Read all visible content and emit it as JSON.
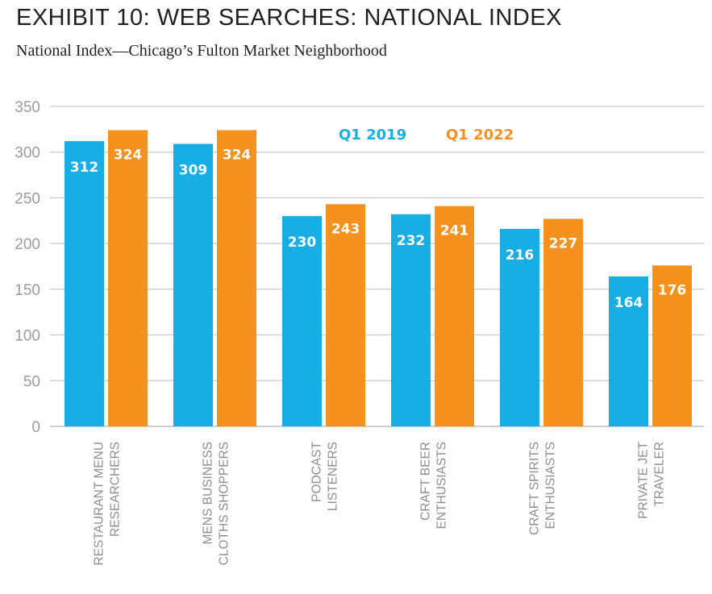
{
  "title": "EXHIBIT 10: WEB SEARCHES: NATIONAL INDEX",
  "subtitle": "National Index—Chicago’s Fulton Market Neighborhood",
  "colors": {
    "q1_2019": "#17aee6",
    "q1_2022": "#f5921e",
    "grid": "#c8c8c8"
  },
  "chart_data": {
    "type": "bar",
    "title": "EXHIBIT 10: WEB SEARCHES: NATIONAL INDEX",
    "subtitle": "National Index—Chicago’s Fulton Market Neighborhood",
    "categories": [
      [
        "RESTAURANT MENU",
        "RESEARCHERS"
      ],
      [
        "MENS BUSINESS",
        "CLOTHS SHOPPERS"
      ],
      [
        "PODCAST",
        "LISTENERS"
      ],
      [
        "CRAFT BEER",
        "ENTHUSIASTS"
      ],
      [
        "CRAFT SPIRITS",
        "ENTHUSIASTS"
      ],
      [
        "PRIVATE JET",
        "TRAVELER"
      ]
    ],
    "series": [
      {
        "name": "Q1 2019",
        "values": [
          312,
          309,
          230,
          232,
          216,
          164
        ]
      },
      {
        "name": "Q1 2022",
        "values": [
          324,
          324,
          243,
          241,
          227,
          176
        ]
      }
    ],
    "yticks": [
      0,
      50,
      100,
      150,
      200,
      250,
      300,
      350
    ],
    "ylim": [
      0,
      350
    ],
    "xlabel": "",
    "ylabel": "",
    "grid": true,
    "legend": "top-center",
    "data_labels": true
  }
}
